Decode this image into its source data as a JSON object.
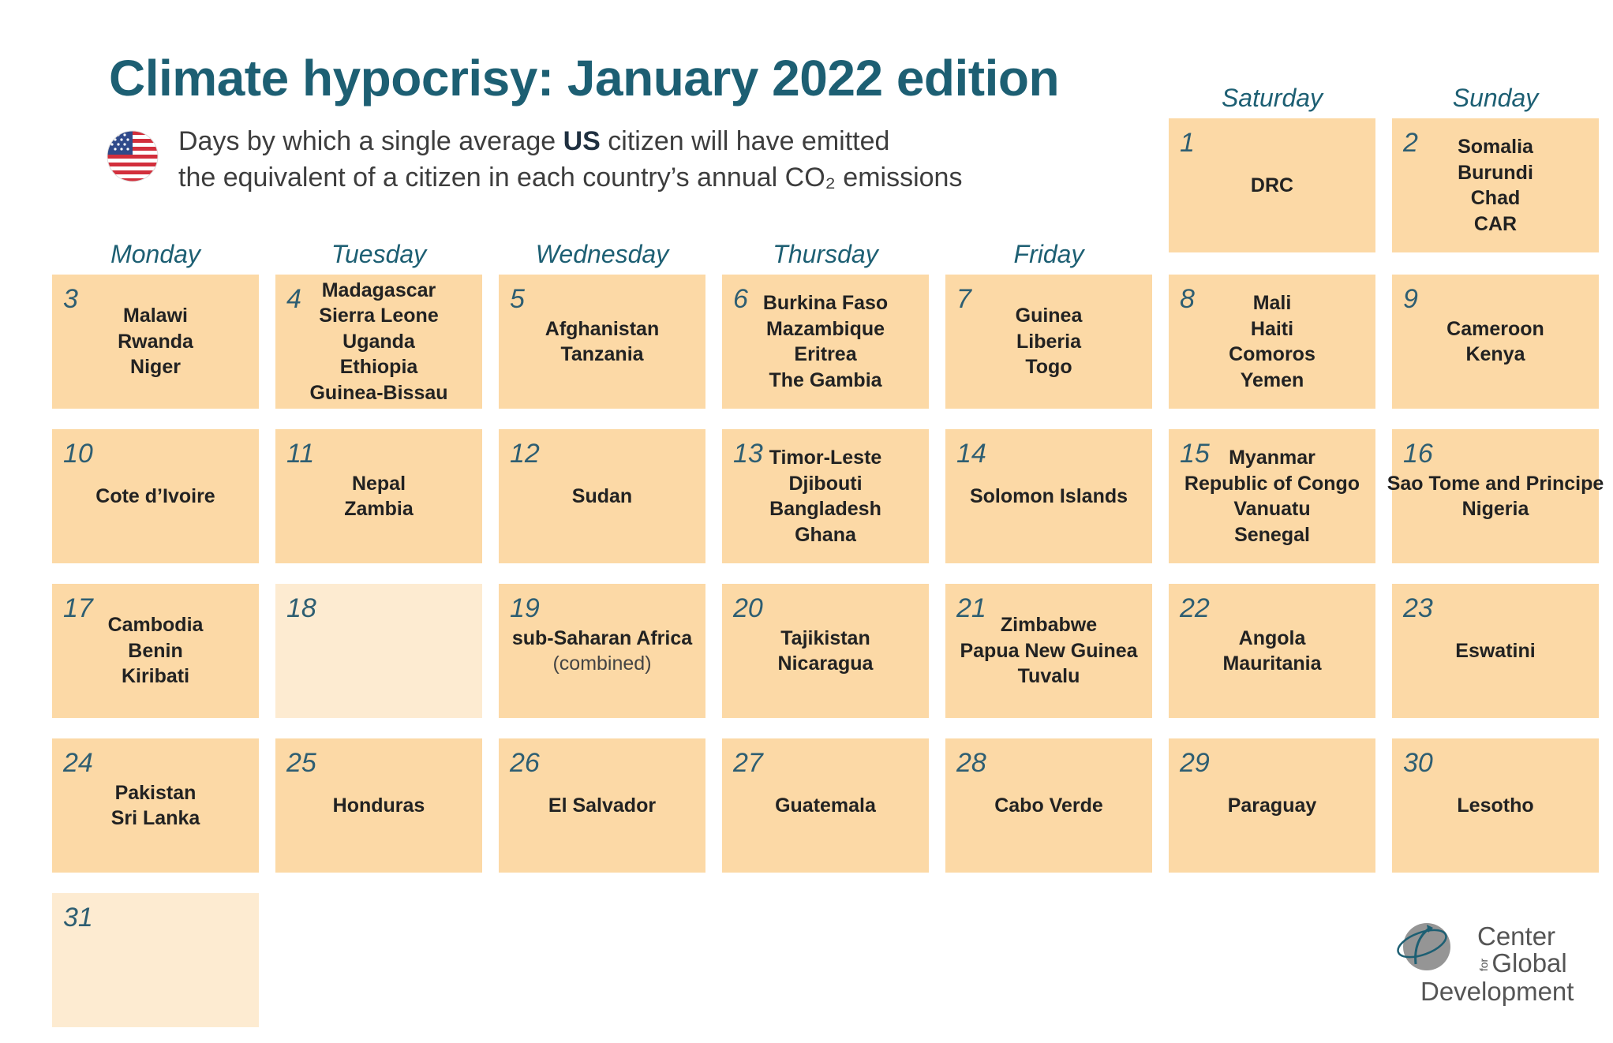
{
  "title": "Climate hypocrisy: January 2022 edition",
  "subtitle": {
    "line1_pre": "Days by which a single average ",
    "line1_bold": "US",
    "line1_post": " citizen will have emitted",
    "line2": "the equivalent of a citizen in each country’s annual CO₂ emissions"
  },
  "flag_icon": "us-flag-icon",
  "colors": {
    "title": "#1d5f73",
    "cell_fill": "#fcd9a6",
    "cell_empty_fill": "#fdebd1"
  },
  "weekdays": [
    "Monday",
    "Tuesday",
    "Wednesday",
    "Thursday",
    "Friday",
    "Saturday",
    "Sunday"
  ],
  "days": [
    {
      "day": "1",
      "countries": [
        "DRC"
      ]
    },
    {
      "day": "2",
      "countries": [
        "Somalia",
        "Burundi",
        "Chad",
        "CAR"
      ]
    },
    {
      "day": "3",
      "countries": [
        "Malawi",
        "Rwanda",
        "Niger"
      ]
    },
    {
      "day": "4",
      "countries": [
        "Madagascar",
        "Sierra Leone",
        "Uganda",
        "Ethiopia",
        "Guinea-Bissau"
      ]
    },
    {
      "day": "5",
      "countries": [
        "Afghanistan",
        "Tanzania"
      ]
    },
    {
      "day": "6",
      "countries": [
        "Burkina Faso",
        "Mazambique",
        "Eritrea",
        "The Gambia"
      ]
    },
    {
      "day": "7",
      "countries": [
        "Guinea",
        "Liberia",
        "Togo"
      ]
    },
    {
      "day": "8",
      "countries": [
        "Mali",
        "Haiti",
        "Comoros",
        "Yemen"
      ]
    },
    {
      "day": "9",
      "countries": [
        "Cameroon",
        "Kenya"
      ]
    },
    {
      "day": "10",
      "countries": [
        "Cote d’Ivoire"
      ]
    },
    {
      "day": "11",
      "countries": [
        "Nepal",
        "Zambia"
      ]
    },
    {
      "day": "12",
      "countries": [
        "Sudan"
      ]
    },
    {
      "day": "13",
      "countries": [
        "Timor-Leste",
        "Djibouti",
        "Bangladesh",
        "Ghana"
      ]
    },
    {
      "day": "14",
      "countries": [
        "Solomon Islands"
      ]
    },
    {
      "day": "15",
      "countries": [
        "Myanmar",
        "Republic of Congo",
        "Vanuatu",
        "Senegal"
      ]
    },
    {
      "day": "16",
      "countries": [
        "Sao Tome and Principe",
        "Nigeria"
      ]
    },
    {
      "day": "17",
      "countries": [
        "Cambodia",
        "Benin",
        "Kiribati"
      ]
    },
    {
      "day": "18",
      "countries": []
    },
    {
      "day": "19",
      "countries": [
        "sub-Saharan Africa"
      ],
      "note": "(combined)"
    },
    {
      "day": "20",
      "countries": [
        "Tajikistan",
        "Nicaragua"
      ]
    },
    {
      "day": "21",
      "countries": [
        "Zimbabwe",
        "Papua New Guinea",
        "Tuvalu"
      ]
    },
    {
      "day": "22",
      "countries": [
        "Angola",
        "Mauritania"
      ]
    },
    {
      "day": "23",
      "countries": [
        "Eswatini"
      ]
    },
    {
      "day": "24",
      "countries": [
        "Pakistan",
        "Sri Lanka"
      ]
    },
    {
      "day": "25",
      "countries": [
        "Honduras"
      ]
    },
    {
      "day": "26",
      "countries": [
        "El Salvador"
      ]
    },
    {
      "day": "27",
      "countries": [
        "Guatemala"
      ]
    },
    {
      "day": "28",
      "countries": [
        "Cabo Verde"
      ]
    },
    {
      "day": "29",
      "countries": [
        "Paraguay"
      ]
    },
    {
      "day": "30",
      "countries": [
        "Lesotho"
      ]
    },
    {
      "day": "31",
      "countries": []
    }
  ],
  "logo": {
    "icon": "cgd-globe-icon",
    "line1": "Center",
    "line2_small": "for",
    "line2": "Global",
    "line3": "Development"
  }
}
